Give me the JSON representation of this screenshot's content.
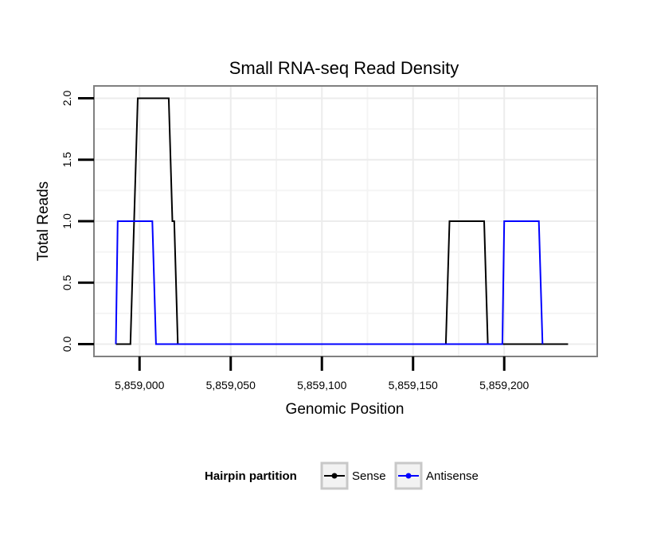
{
  "chart_data": {
    "type": "line",
    "title": "Small RNA-seq Read Density",
    "xlabel": "Genomic Position",
    "ylabel": "Total Reads",
    "xlim": [
      5858975,
      5859251
    ],
    "ylim": [
      -0.1,
      2.1
    ],
    "xticks": [
      5859000,
      5859050,
      5859100,
      5859150,
      5859200
    ],
    "xtick_labels": [
      "5,859,000",
      "5,859,050",
      "5,859,100",
      "5,859,150",
      "5,859,200"
    ],
    "yticks": [
      0.0,
      0.5,
      1.0,
      1.5,
      2.0
    ],
    "ytick_labels": [
      "0.0",
      "0.5",
      "1.0",
      "1.5",
      "2.0"
    ],
    "grid": true,
    "legend": {
      "title": "Hairpin partition",
      "position": "bottom"
    },
    "series": [
      {
        "name": "Sense",
        "color": "#000000",
        "x": [
          5858987,
          5858995,
          5858997,
          5858999,
          5859016,
          5859018,
          5859019,
          5859021,
          5859168,
          5859170,
          5859189,
          5859191,
          5859235
        ],
        "y": [
          0,
          0,
          1,
          2,
          2,
          1,
          1,
          0,
          0,
          1,
          1,
          0,
          0
        ]
      },
      {
        "name": "Antisense",
        "color": "#0000ff",
        "x": [
          5858987,
          5858988,
          5859007,
          5859009,
          5859199,
          5859200,
          5859219,
          5859221
        ],
        "y": [
          0,
          1,
          1,
          0,
          0,
          1,
          1,
          0
        ]
      }
    ]
  }
}
